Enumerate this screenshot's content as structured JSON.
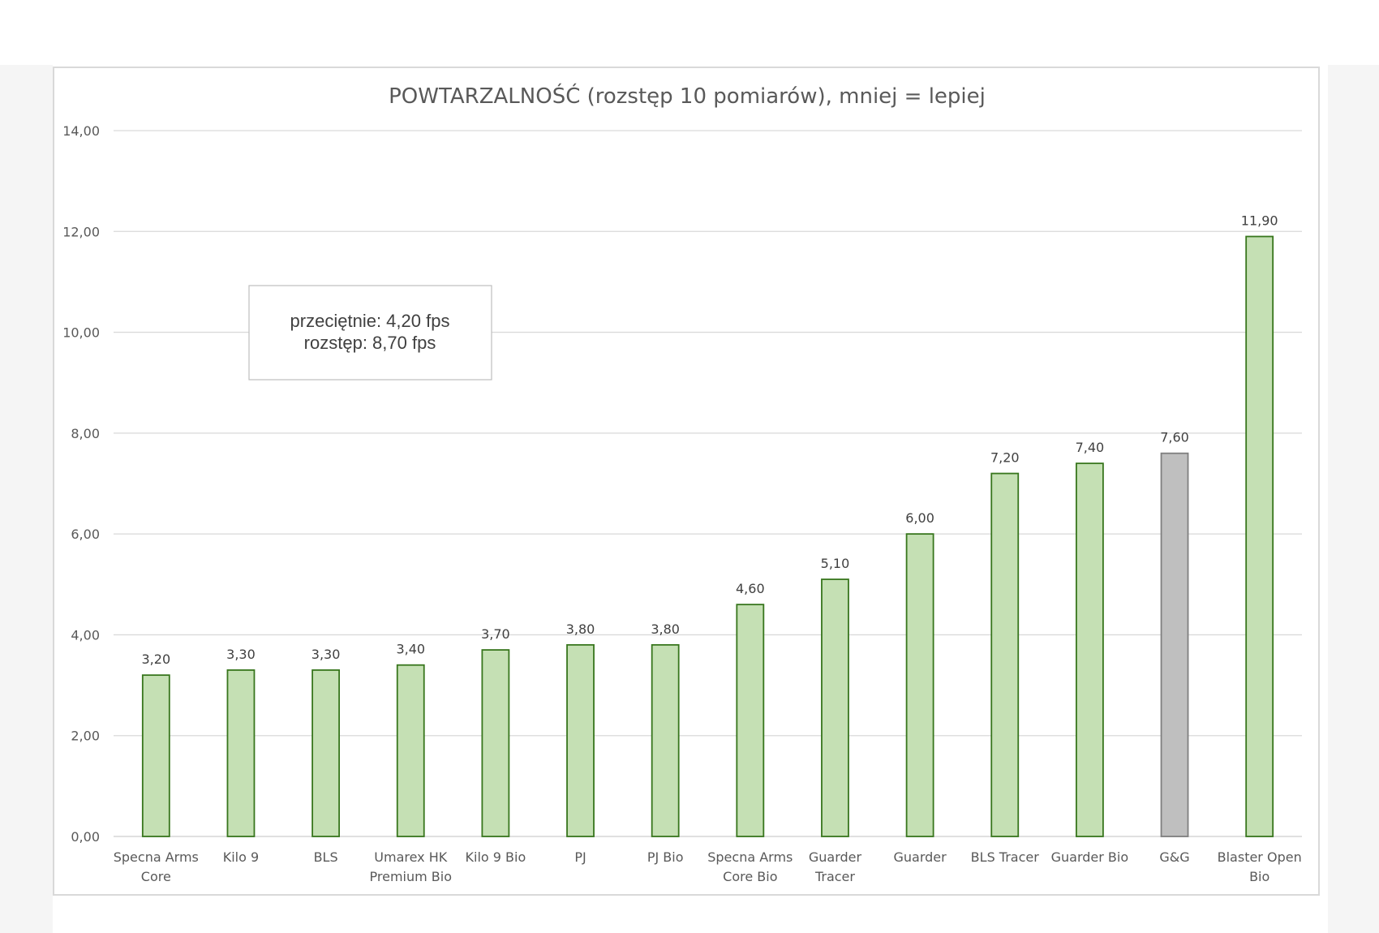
{
  "chart_data": {
    "type": "bar",
    "title": "POWTARZALNOŚĆ (rozstęp 10 pomiarów), mniej = lepiej",
    "xlabel": "",
    "ylabel": "",
    "ylim": [
      0,
      14
    ],
    "yticks": [
      "0,00",
      "2,00",
      "4,00",
      "6,00",
      "8,00",
      "10,00",
      "12,00",
      "14,00"
    ],
    "grid": true,
    "categories": [
      [
        "Specna Arms",
        "Core"
      ],
      [
        "Kilo 9"
      ],
      [
        "BLS"
      ],
      [
        "Umarex HK",
        "Premium Bio"
      ],
      [
        "Kilo 9 Bio"
      ],
      [
        "PJ"
      ],
      [
        "PJ Bio"
      ],
      [
        "Specna Arms",
        "Core Bio"
      ],
      [
        "Guarder",
        "Tracer"
      ],
      [
        "Guarder"
      ],
      [
        "BLS Tracer"
      ],
      [
        "Guarder Bio"
      ],
      [
        "G&G"
      ],
      [
        "Blaster Open",
        "Bio"
      ]
    ],
    "values": [
      3.2,
      3.3,
      3.3,
      3.4,
      3.7,
      3.8,
      3.8,
      4.6,
      5.1,
      6.0,
      7.2,
      7.4,
      7.6,
      11.9
    ],
    "value_labels": [
      "3,20",
      "3,30",
      "3,30",
      "3,40",
      "3,70",
      "3,80",
      "3,80",
      "4,60",
      "5,10",
      "6,00",
      "7,20",
      "7,40",
      "7,60",
      "11,90"
    ],
    "highlighted_index": 12,
    "colors": {
      "bar_fill": "#c5e0b4",
      "bar_stroke": "#38761d",
      "highlight_fill": "#bfbfbf",
      "highlight_stroke": "#7f7f7f",
      "grid": "#d9d9d9"
    },
    "annotation": [
      "przeciętnie: 4,20 fps",
      "rozstęp: 8,70 fps"
    ]
  }
}
